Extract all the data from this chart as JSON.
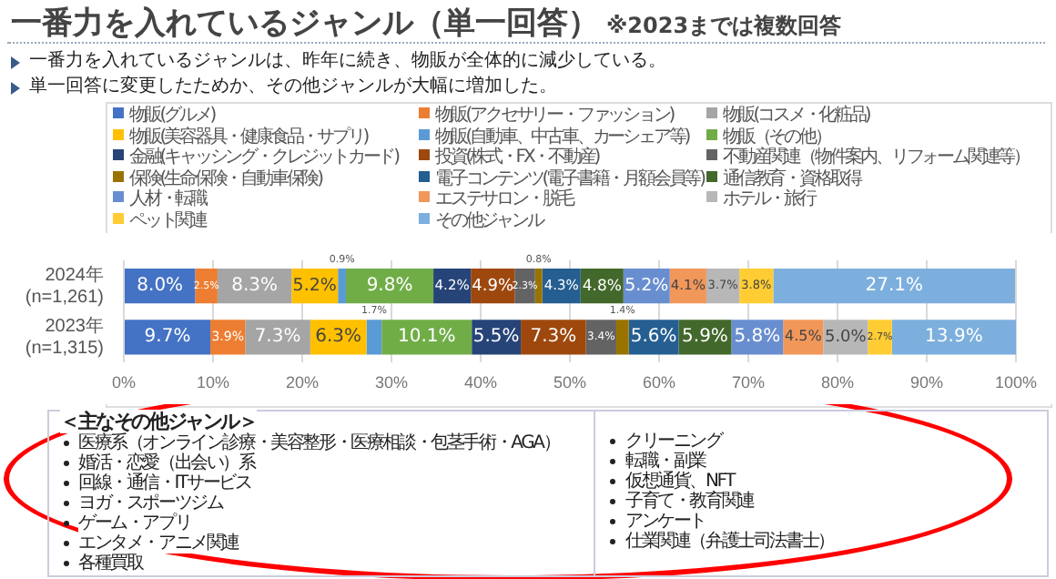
{
  "chart_data": {
    "type": "bar",
    "orientation": "horizontal",
    "stacked": true,
    "title": "一番力を入れているジャンル（単一回答）",
    "subtitle": "※2023までは複数回答",
    "categories": [
      "2024年\n(n=1,261)",
      "2023年\n(n=1,315)"
    ],
    "series": [
      {
        "name": "物販(グルメ)",
        "color": "#4472c4",
        "values": [
          8.0,
          9.7
        ],
        "value_labels": [
          "8.0%",
          "9.7%"
        ]
      },
      {
        "name": "物販(アクセサリー・ファッション)",
        "color": "#ed7d31",
        "values": [
          2.5,
          3.9
        ],
        "value_labels": [
          "2.5%",
          "3.9%"
        ]
      },
      {
        "name": "物販(コスメ・化粧品)",
        "color": "#a5a5a5",
        "values": [
          8.3,
          7.3
        ],
        "value_labels": [
          "8.3%",
          "7.3%"
        ]
      },
      {
        "name": "物販(美容器具・健康食品・サプリ)",
        "color": "#ffc000",
        "values": [
          5.2,
          6.3
        ],
        "value_labels": [
          "5.2%",
          "6.3%"
        ]
      },
      {
        "name": "物販(自動車、中古車、カーシェア等)",
        "color": "#5b9bd5",
        "values": [
          0.9,
          1.7
        ],
        "value_labels": [
          "0.9%",
          "1.7%"
        ]
      },
      {
        "name": "物販（その他）",
        "color": "#70ad47",
        "values": [
          9.8,
          10.1
        ],
        "value_labels": [
          "9.8%",
          "10.1%"
        ]
      },
      {
        "name": "金融(キャッシング・クレジットカード)",
        "color": "#264478",
        "values": [
          4.2,
          5.5
        ],
        "value_labels": [
          "4.2%",
          "5.5%"
        ]
      },
      {
        "name": "投資(株式・FX・不動産)",
        "color": "#9e480e",
        "values": [
          4.9,
          7.3
        ],
        "value_labels": [
          "4.9%",
          "7.3%"
        ]
      },
      {
        "name": "不動産関連（物件案内、リフォーム関連等）",
        "color": "#636363",
        "values": [
          2.3,
          3.4
        ],
        "value_labels": [
          "2.3%",
          "3.4%"
        ]
      },
      {
        "name": "保険(生命保険・自動車保険)",
        "color": "#997300",
        "values": [
          0.8,
          1.4
        ],
        "value_labels": [
          "0.8%",
          "1.4%"
        ]
      },
      {
        "name": "電子コンテンツ(電子書籍・月額会員等)",
        "color": "#255e91",
        "values": [
          4.3,
          5.6
        ],
        "value_labels": [
          "4.3%",
          "5.6%"
        ]
      },
      {
        "name": "通信教育・資格取得",
        "color": "#43682b",
        "values": [
          4.8,
          5.9
        ],
        "value_labels": [
          "4.8%",
          "5.9%"
        ]
      },
      {
        "name": "人材・転職",
        "color": "#698ed0",
        "values": [
          5.2,
          5.8
        ],
        "value_labels": [
          "5.2%",
          "5.8%"
        ]
      },
      {
        "name": "エステサロン・脱毛",
        "color": "#f1975a",
        "values": [
          4.1,
          4.5
        ],
        "value_labels": [
          "4.1%",
          "4.5%"
        ]
      },
      {
        "name": "ホテル・旅行",
        "color": "#b7b7b7",
        "values": [
          3.7,
          5.0
        ],
        "value_labels": [
          "3.7%",
          "5.0%"
        ]
      },
      {
        "name": "ペット関連",
        "color": "#ffcd33",
        "values": [
          3.8,
          2.7
        ],
        "value_labels": [
          "3.8%",
          "2.7%"
        ]
      },
      {
        "name": "その他ジャンル",
        "color": "#7cafdd",
        "values": [
          27.1,
          13.9
        ],
        "value_labels": [
          "27.1%",
          "13.9%"
        ]
      }
    ],
    "xlim": [
      0,
      100
    ],
    "xticks": [
      {
        "value": 0,
        "label": "0%"
      },
      {
        "value": 10,
        "label": "10%"
      },
      {
        "value": 20,
        "label": "20%"
      },
      {
        "value": 30,
        "label": "30%"
      },
      {
        "value": 40,
        "label": "40%"
      },
      {
        "value": 50,
        "label": "50%"
      },
      {
        "value": 60,
        "label": "60%"
      },
      {
        "value": 70,
        "label": "70%"
      },
      {
        "value": 80,
        "label": "80%"
      },
      {
        "value": 90,
        "label": "90%"
      },
      {
        "value": 100,
        "label": "100%"
      }
    ],
    "grid": "x",
    "legend": "top",
    "annotations": [
      "一番力を入れているジャンルは、昨年に続き、物販が全体的に減少している。",
      "単一回答に変更したためか、その他ジャンルが大幅に増加した。",
      "＜主なその他ジャンル＞",
      "医療系（オンライン診療・美容整形・医療相談・包茎手術・AGA）",
      "婚活・恋愛（出会い）系",
      "回線・通信・ITサービス",
      "ヨガ・スポーツジム",
      "ゲーム・アプリ",
      "エンタメ・アニメ関連",
      "各種買取",
      "クリーニング",
      "転職・副業",
      "仮想通貨、NFT",
      "子育て・教育関連",
      "アンケート",
      "仕業関連（弁護士司法書士）"
    ]
  }
}
